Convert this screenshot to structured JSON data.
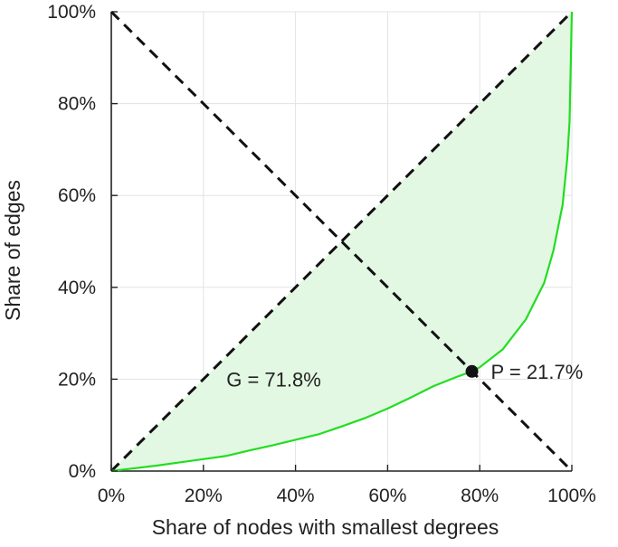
{
  "chart_data": {
    "type": "area",
    "title": "",
    "xlabel": "Share of nodes with smallest degrees",
    "ylabel": "Share of edges",
    "xlim": [
      0,
      100
    ],
    "ylim": [
      0,
      100
    ],
    "grid": true,
    "x_ticks": [
      "0%",
      "20%",
      "40%",
      "60%",
      "80%",
      "100%"
    ],
    "y_ticks": [
      "0%",
      "20%",
      "40%",
      "60%",
      "80%",
      "100%"
    ],
    "series": [
      {
        "name": "Lorenz curve",
        "color": "#22dd22",
        "fill": "#e3f8e3",
        "x": [
          0,
          5,
          10,
          15,
          20,
          25,
          30,
          35,
          40,
          45,
          50,
          55,
          60,
          65,
          70,
          75,
          78.3,
          80,
          85,
          90,
          94,
          96,
          98,
          99,
          99.5,
          100
        ],
        "y": [
          0,
          0.6,
          1.2,
          1.9,
          2.6,
          3.3,
          4.5,
          5.6,
          6.8,
          8.0,
          9.7,
          11.5,
          13.6,
          16.0,
          18.5,
          20.5,
          21.7,
          22.6,
          26.5,
          33.0,
          41.0,
          48.0,
          58.0,
          68.0,
          76.0,
          100
        ]
      }
    ],
    "reference_lines": [
      {
        "name": "equality-diagonal",
        "style": "dashed",
        "from": [
          0,
          0
        ],
        "to": [
          100,
          100
        ]
      },
      {
        "name": "anti-diagonal",
        "style": "dashed",
        "from": [
          0,
          100
        ],
        "to": [
          100,
          0
        ]
      }
    ],
    "marker": {
      "x": 78.3,
      "y": 21.7,
      "label": "P = 21.7%"
    },
    "annotations": [
      {
        "text": "G = 71.8%",
        "x": 25,
        "y": 20
      }
    ]
  }
}
